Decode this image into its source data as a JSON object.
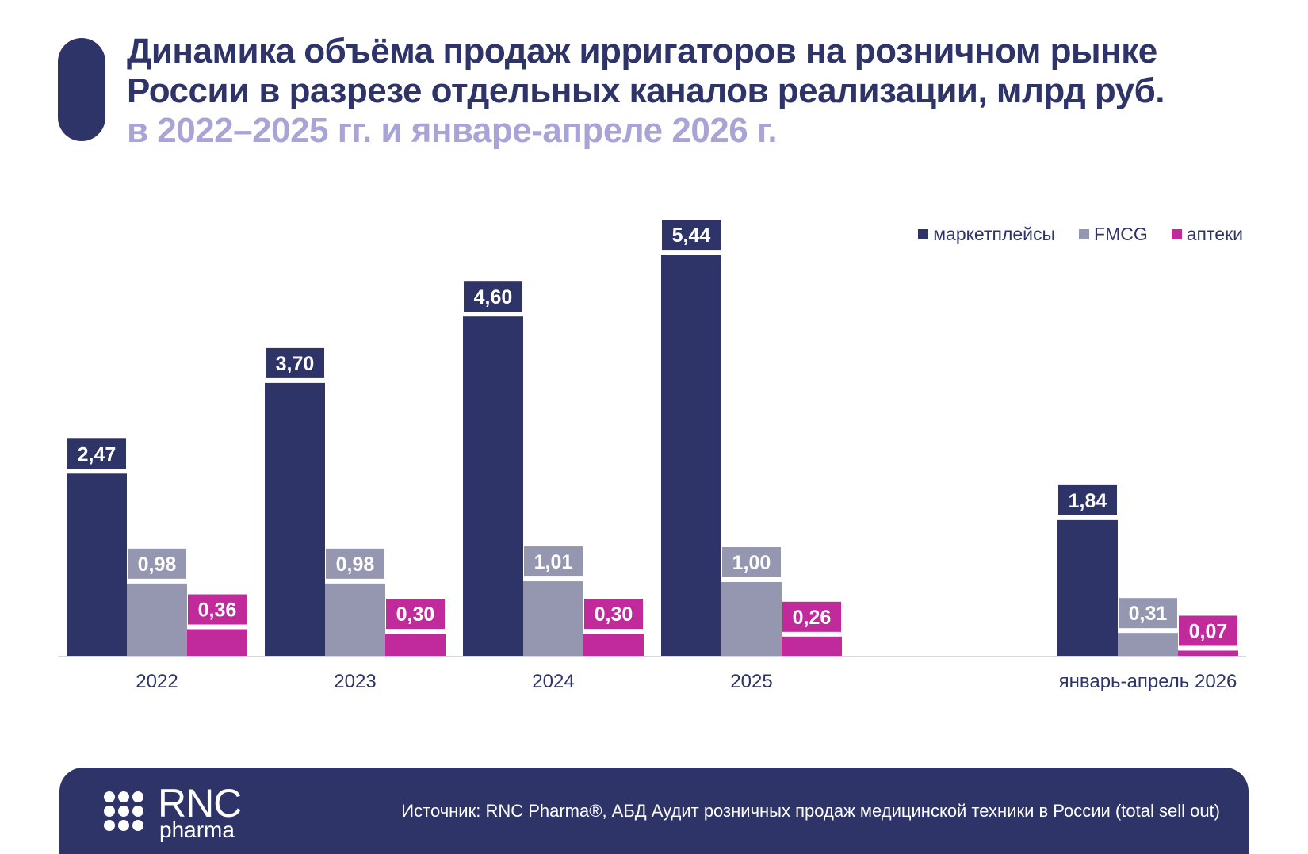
{
  "title": {
    "line1": "Динамика объёма продаж ирригаторов на розничном рынке",
    "line2": "России в разрезе отдельных каналов реализации, млрд руб.",
    "line3": "в 2022–2025 гг. и январе-апреле 2026 г."
  },
  "colors": {
    "marketplaces": "#2f3468",
    "fmcg": "#9597b0",
    "pharmacies": "#c12a9a",
    "title_sub": "#a9a4d6"
  },
  "chart_data": {
    "type": "bar",
    "categories": [
      "2022",
      "2023",
      "2024",
      "2025",
      "январь-апрель 2026"
    ],
    "series": [
      {
        "name": "маркетплейсы",
        "values": [
          2.47,
          3.7,
          4.6,
          5.44,
          1.84
        ],
        "labels": [
          "2,47",
          "3,70",
          "4,60",
          "5,44",
          "1,84"
        ]
      },
      {
        "name": "FMCG",
        "values": [
          0.98,
          0.98,
          1.01,
          1.0,
          0.31
        ],
        "labels": [
          "0,98",
          "0,98",
          "1,01",
          "1,00",
          "0,31"
        ]
      },
      {
        "name": "аптеки",
        "values": [
          0.36,
          0.3,
          0.3,
          0.26,
          0.07
        ],
        "labels": [
          "0,36",
          "0,30",
          "0,30",
          "0,26",
          "0,07"
        ]
      }
    ],
    "ylim": [
      0,
      6
    ],
    "grid": false,
    "legend_position": "top-right"
  },
  "footer": {
    "logo_rnc": "RNC",
    "logo_pharma": "pharma",
    "source": "Источник: RNC Pharma®, АБД Аудит розничных продаж медицинской техники в России (total sell out)"
  }
}
